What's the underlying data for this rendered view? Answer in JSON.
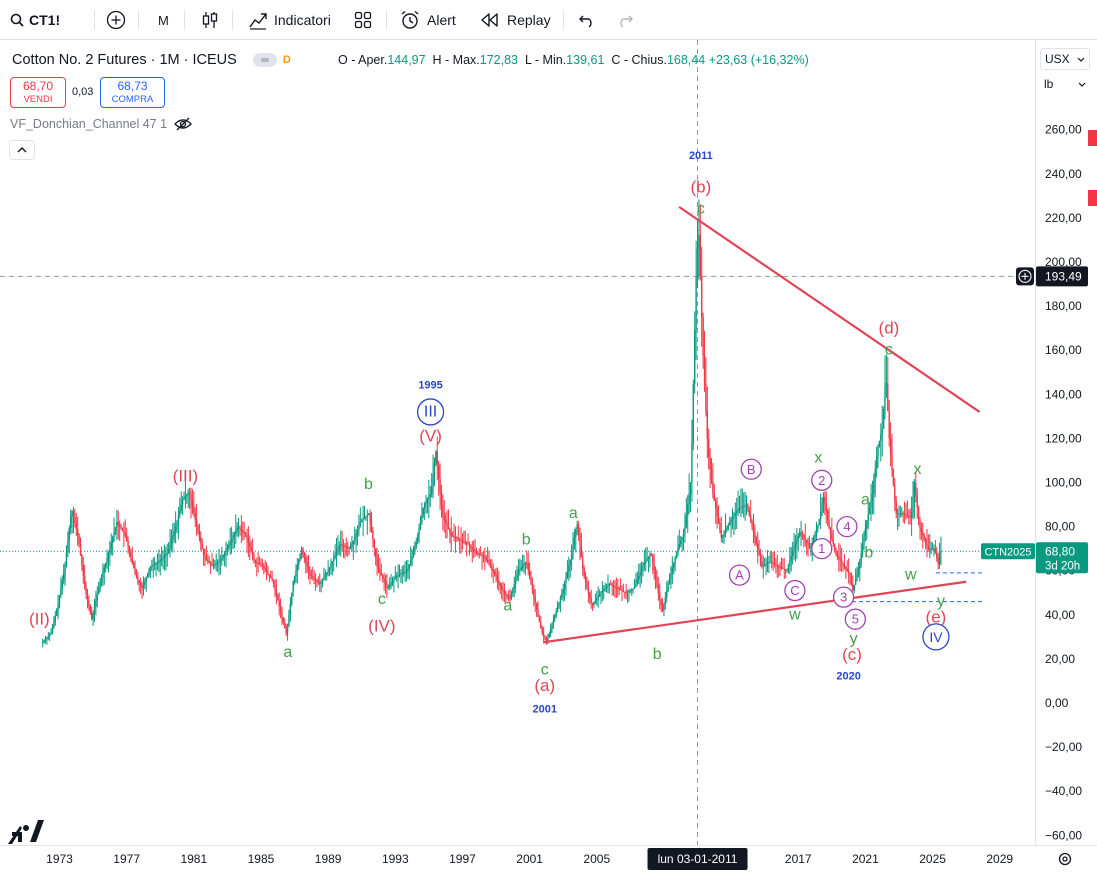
{
  "toolbar": {
    "symbol": "CT1!",
    "interval": "M",
    "indicators_label": "Indicatori",
    "alert_label": "Alert",
    "replay_label": "Replay"
  },
  "legend": {
    "title": "Cotton No. 2 Futures · 1M · ICEUS",
    "d_badge": "D",
    "ohlc": {
      "o_label": "O - Aper.",
      "o_value": "144,97",
      "h_label": "H - Max.",
      "h_value": "172,83",
      "l_label": "L - Min.",
      "l_value": "139,61",
      "c_label": "C - Chius.",
      "c_value": "168,44",
      "change": "+23,63 (+16,32%)"
    },
    "sell_price": "68,70",
    "sell_label": "VENDI",
    "spread": "0,03",
    "buy_price": "68,73",
    "buy_label": "COMPRA",
    "indicator_name": "VF_Donchian_Channel 47 1"
  },
  "axis": {
    "currency": "USX",
    "unit": "lb",
    "y_ticks": [
      "260,00",
      "240,00",
      "220,00",
      "200,00",
      "180,00",
      "160,00",
      "140,00",
      "120,00",
      "100,00",
      "80,00",
      "60,00",
      "40,00",
      "20,00",
      "0,00",
      "−20,00",
      "−40,00",
      "−60,00"
    ],
    "x_ticks": [
      "1973",
      "1977",
      "1981",
      "1985",
      "1989",
      "1993",
      "1997",
      "2001",
      "2005",
      "2017",
      "2021",
      "2025",
      "2029"
    ],
    "crosshair_x_label": "lun 03-01-2011",
    "crosshair_price": "193,49",
    "last_symbol": "CTN2025",
    "last_price": "68,80",
    "countdown": "3d 20h"
  },
  "colors": {
    "up": "#089981",
    "down": "#f23645",
    "trendline": "#e04455",
    "wave_red": "#e04455",
    "wave_green": "#43a047",
    "wave_blue": "#2a45c8",
    "wave_purple": "#a43fb5"
  },
  "chart_data": {
    "type": "candlestick",
    "x_range": [
      1971,
      2030.3
    ],
    "y_range": [
      -60,
      260
    ],
    "price_path": [
      [
        1972.0,
        27
      ],
      [
        1972.6,
        32
      ],
      [
        1973.0,
        45
      ],
      [
        1973.4,
        62
      ],
      [
        1973.8,
        88
      ],
      [
        1974.2,
        75
      ],
      [
        1974.6,
        52
      ],
      [
        1975.0,
        38
      ],
      [
        1975.5,
        55
      ],
      [
        1976.0,
        68
      ],
      [
        1976.5,
        82
      ],
      [
        1977.0,
        76
      ],
      [
        1977.6,
        58
      ],
      [
        1978.0,
        52
      ],
      [
        1978.5,
        62
      ],
      [
        1979.0,
        64
      ],
      [
        1979.5,
        68
      ],
      [
        1980.0,
        80
      ],
      [
        1980.4,
        92
      ],
      [
        1980.8,
        96
      ],
      [
        1981.2,
        82
      ],
      [
        1981.7,
        66
      ],
      [
        1982.2,
        62
      ],
      [
        1982.7,
        65
      ],
      [
        1983.2,
        72
      ],
      [
        1983.7,
        80
      ],
      [
        1984.2,
        76
      ],
      [
        1984.7,
        64
      ],
      [
        1985.2,
        62
      ],
      [
        1985.8,
        55
      ],
      [
        1986.3,
        40
      ],
      [
        1986.6,
        31
      ],
      [
        1987.0,
        55
      ],
      [
        1987.5,
        70
      ],
      [
        1988.0,
        58
      ],
      [
        1988.6,
        54
      ],
      [
        1989.2,
        62
      ],
      [
        1989.8,
        72
      ],
      [
        1990.4,
        70
      ],
      [
        1991.0,
        82
      ],
      [
        1991.5,
        86
      ],
      [
        1992.0,
        62
      ],
      [
        1992.6,
        52
      ],
      [
        1993.2,
        58
      ],
      [
        1993.8,
        60
      ],
      [
        1994.3,
        72
      ],
      [
        1994.8,
        90
      ],
      [
        1995.2,
        95
      ],
      [
        1995.5,
        114
      ],
      [
        1995.9,
        85
      ],
      [
        1996.4,
        76
      ],
      [
        1996.9,
        74
      ],
      [
        1997.4,
        72
      ],
      [
        1997.9,
        68
      ],
      [
        1998.4,
        66
      ],
      [
        1998.9,
        60
      ],
      [
        1999.4,
        52
      ],
      [
        1999.9,
        47
      ],
      [
        2000.4,
        60
      ],
      [
        2000.9,
        64
      ],
      [
        2001.4,
        46
      ],
      [
        2001.8,
        32
      ],
      [
        2002.1,
        28
      ],
      [
        2002.6,
        40
      ],
      [
        2003.1,
        52
      ],
      [
        2003.6,
        68
      ],
      [
        2003.9,
        82
      ],
      [
        2004.3,
        58
      ],
      [
        2004.8,
        44
      ],
      [
        2005.3,
        50
      ],
      [
        2005.8,
        54
      ],
      [
        2006.3,
        52
      ],
      [
        2006.8,
        50
      ],
      [
        2007.3,
        52
      ],
      [
        2007.8,
        62
      ],
      [
        2008.3,
        68
      ],
      [
        2008.8,
        48
      ],
      [
        2009.0,
        42
      ],
      [
        2009.4,
        56
      ],
      [
        2009.9,
        70
      ],
      [
        2010.3,
        78
      ],
      [
        2010.7,
        102
      ],
      [
        2010.85,
        150
      ],
      [
        2011.0,
        193
      ],
      [
        2011.15,
        216
      ],
      [
        2011.4,
        160
      ],
      [
        2011.7,
        115
      ],
      [
        2012.0,
        95
      ],
      [
        2012.5,
        75
      ],
      [
        2013.0,
        82
      ],
      [
        2013.5,
        88
      ],
      [
        2014.0,
        90
      ],
      [
        2014.5,
        75
      ],
      [
        2014.9,
        62
      ],
      [
        2015.4,
        64
      ],
      [
        2015.9,
        62
      ],
      [
        2016.4,
        60
      ],
      [
        2016.8,
        70
      ],
      [
        2017.2,
        78
      ],
      [
        2017.8,
        70
      ],
      [
        2018.3,
        82
      ],
      [
        2018.6,
        94
      ],
      [
        2018.9,
        80
      ],
      [
        2019.3,
        68
      ],
      [
        2019.8,
        62
      ],
      [
        2020.2,
        58
      ],
      [
        2020.3,
        50
      ],
      [
        2020.7,
        62
      ],
      [
        2021.1,
        80
      ],
      [
        2021.5,
        95
      ],
      [
        2021.8,
        115
      ],
      [
        2022.1,
        125
      ],
      [
        2022.3,
        150
      ],
      [
        2022.5,
        120
      ],
      [
        2022.9,
        86
      ],
      [
        2023.3,
        86
      ],
      [
        2023.8,
        84
      ],
      [
        2024.0,
        100
      ],
      [
        2024.3,
        80
      ],
      [
        2024.8,
        70
      ],
      [
        2025.2,
        70
      ],
      [
        2025.45,
        62
      ],
      [
        2025.5,
        68.8
      ]
    ],
    "trendlines": [
      {
        "from": [
          2001.8,
          27.5
        ],
        "to": [
          2027.0,
          55
        ]
      },
      {
        "from": [
          2009.9,
          225
        ],
        "to": [
          2027.8,
          132
        ]
      }
    ],
    "dashed_levels": [
      {
        "price": 59,
        "x_from": 2025.2,
        "x_to": 2028.0,
        "color": "#2962ff"
      },
      {
        "price": 46,
        "x_from": 2020.2,
        "x_to": 2028.0,
        "color": "#2962ff"
      }
    ],
    "crosshair": {
      "x": 2011.0,
      "price": 193.49
    },
    "wave_labels": [
      {
        "text": "(II)",
        "x": 1971.8,
        "y": 38,
        "color": "red",
        "size": 17
      },
      {
        "text": "a",
        "x": 1986.6,
        "y": 23,
        "color": "green",
        "size": 16
      },
      {
        "text": "(III)",
        "x": 1980.5,
        "y": 103,
        "color": "red",
        "size": 17
      },
      {
        "text": "b",
        "x": 1991.4,
        "y": 99,
        "color": "green",
        "size": 16
      },
      {
        "text": "c",
        "x": 1992.2,
        "y": 47,
        "color": "green",
        "size": 16
      },
      {
        "text": "(IV)",
        "x": 1992.2,
        "y": 35,
        "color": "red",
        "size": 17
      },
      {
        "text": "1995",
        "x": 1995.1,
        "y": 144,
        "color": "blue",
        "size": 11
      },
      {
        "text": "III",
        "x": 1995.1,
        "y": 132,
        "color": "blue",
        "size": 16,
        "circle": "blue"
      },
      {
        "text": "(V)",
        "x": 1995.1,
        "y": 121,
        "color": "red",
        "size": 17
      },
      {
        "text": "a",
        "x": 1999.7,
        "y": 44,
        "color": "green",
        "size": 16
      },
      {
        "text": "b",
        "x": 2000.8,
        "y": 74,
        "color": "green",
        "size": 16
      },
      {
        "text": "a",
        "x": 2003.6,
        "y": 86,
        "color": "green",
        "size": 16
      },
      {
        "text": "c",
        "x": 2001.9,
        "y": 15,
        "color": "green",
        "size": 16
      },
      {
        "text": "(a)",
        "x": 2001.9,
        "y": 8,
        "color": "red",
        "size": 17
      },
      {
        "text": "2001",
        "x": 2001.9,
        "y": -3,
        "color": "blue",
        "size": 11
      },
      {
        "text": "b",
        "x": 2008.6,
        "y": 22,
        "color": "green",
        "size": 16
      },
      {
        "text": "2011",
        "x": 2011.2,
        "y": 248,
        "color": "blue",
        "size": 11
      },
      {
        "text": "(b)",
        "x": 2011.2,
        "y": 234,
        "color": "red",
        "size": 17
      },
      {
        "text": "c",
        "x": 2011.2,
        "y": 224,
        "color": "green",
        "size": 16
      },
      {
        "text": "B",
        "x": 2014.2,
        "y": 106,
        "color": "purple",
        "size": 13,
        "circle": "purple"
      },
      {
        "text": "A",
        "x": 2013.5,
        "y": 58,
        "color": "purple",
        "size": 13,
        "circle": "purple"
      },
      {
        "text": "C",
        "x": 2016.8,
        "y": 51,
        "color": "purple",
        "size": 13,
        "circle": "purple"
      },
      {
        "text": "w",
        "x": 2016.8,
        "y": 40,
        "color": "green",
        "size": 16
      },
      {
        "text": "x",
        "x": 2018.2,
        "y": 111,
        "color": "green",
        "size": 16
      },
      {
        "text": "2",
        "x": 2018.4,
        "y": 101,
        "color": "purple",
        "size": 13,
        "circle": "purple"
      },
      {
        "text": "1",
        "x": 2018.4,
        "y": 70,
        "color": "purple",
        "size": 13,
        "circle": "purple"
      },
      {
        "text": "4",
        "x": 2019.9,
        "y": 80,
        "color": "purple",
        "size": 13,
        "circle": "purple"
      },
      {
        "text": "3",
        "x": 2019.7,
        "y": 48,
        "color": "purple",
        "size": 13,
        "circle": "purple"
      },
      {
        "text": "5",
        "x": 2020.4,
        "y": 38,
        "color": "purple",
        "size": 13,
        "circle": "purple"
      },
      {
        "text": "y",
        "x": 2020.3,
        "y": 29,
        "color": "green",
        "size": 16
      },
      {
        "text": "(c)",
        "x": 2020.2,
        "y": 22,
        "color": "red",
        "size": 17
      },
      {
        "text": "2020",
        "x": 2020.0,
        "y": 12,
        "color": "blue",
        "size": 11
      },
      {
        "text": "b",
        "x": 2021.2,
        "y": 68,
        "color": "green",
        "size": 16
      },
      {
        "text": "a",
        "x": 2021.0,
        "y": 92,
        "color": "green",
        "size": 16
      },
      {
        "text": "(d)",
        "x": 2022.4,
        "y": 170,
        "color": "red",
        "size": 17
      },
      {
        "text": "c",
        "x": 2022.4,
        "y": 160,
        "color": "green",
        "size": 16
      },
      {
        "text": "x",
        "x": 2024.1,
        "y": 106,
        "color": "green",
        "size": 16
      },
      {
        "text": "w",
        "x": 2023.7,
        "y": 58,
        "color": "green",
        "size": 16
      },
      {
        "text": "y",
        "x": 2025.5,
        "y": 46,
        "color": "green",
        "size": 16
      },
      {
        "text": "(e)",
        "x": 2025.2,
        "y": 39,
        "color": "red",
        "size": 17
      },
      {
        "text": "IV",
        "x": 2025.2,
        "y": 30,
        "color": "blue",
        "size": 14,
        "circle": "blue"
      }
    ]
  }
}
